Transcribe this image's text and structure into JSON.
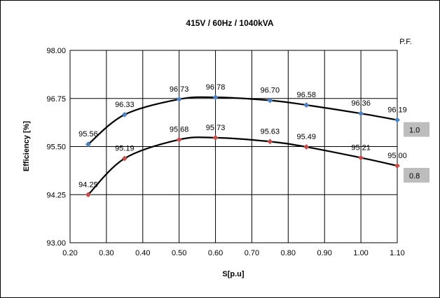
{
  "chart_data": {
    "type": "line",
    "title": "415V / 60Hz / 1040kVA",
    "xlabel": "S[p.u]",
    "ylabel": "Efficiency [%]",
    "xlim": [
      0.2,
      1.1
    ],
    "ylim": [
      93.0,
      98.0
    ],
    "x_ticks": [
      "0.20",
      "0.30",
      "0.40",
      "0.50",
      "0.60",
      "0.70",
      "0.80",
      "0.90",
      "1.00",
      "1.10"
    ],
    "y_ticks": [
      "93.00",
      "94.25",
      "95.50",
      "96.75",
      "98.00"
    ],
    "grid": true,
    "legend_title": "P.F.",
    "legend_placement": "right",
    "series": [
      {
        "name": "1.0",
        "color": "#4f81bd",
        "x": [
          0.25,
          0.35,
          0.5,
          0.6,
          0.75,
          0.85,
          1.0,
          1.1
        ],
        "y": [
          95.56,
          96.33,
          96.73,
          96.78,
          96.7,
          96.58,
          96.36,
          96.19
        ],
        "labels": [
          "95.56",
          "96.33",
          "96.73",
          "96.78",
          "96.70",
          "96.58",
          "96.36",
          "96.19"
        ]
      },
      {
        "name": "0.8",
        "color": "#c0504d",
        "x": [
          0.25,
          0.35,
          0.5,
          0.6,
          0.75,
          0.85,
          1.0,
          1.1
        ],
        "y": [
          94.25,
          95.19,
          95.68,
          95.73,
          95.63,
          95.49,
          95.21,
          95.0
        ],
        "labels": [
          "94.25",
          "95.19",
          "95.68",
          "95.73",
          "95.63",
          "95.49",
          "95.21",
          "95.00"
        ]
      }
    ]
  }
}
